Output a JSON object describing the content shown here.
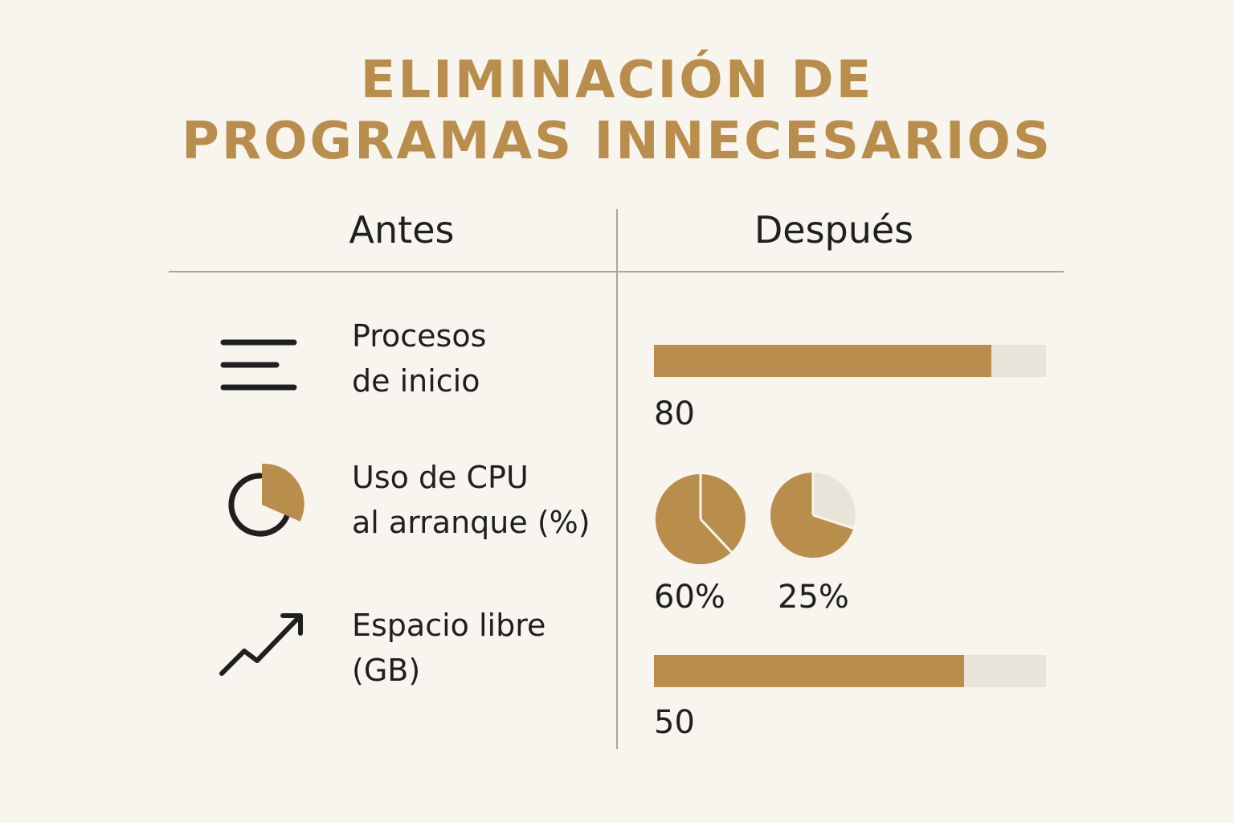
{
  "title": {
    "line1": "ELIMINACIÓN DE",
    "line2": "PROGRAMAS INNECESARIOS"
  },
  "columns": {
    "before": "Antes",
    "after": "Después"
  },
  "rows": [
    {
      "icon": "lines-icon",
      "label_line1": "Procesos",
      "label_line2": "de inicio",
      "value": 80,
      "value_text": "80",
      "bar_fraction": 0.86
    },
    {
      "icon": "pie-chart-icon",
      "label_line1": "Uso de CPU",
      "label_line2": "al arranque (%)",
      "pies": [
        {
          "value": 60,
          "value_text": "60%"
        },
        {
          "value": 25,
          "value_text": "25%"
        }
      ]
    },
    {
      "icon": "trend-up-icon",
      "label_line1": "Espacio libre",
      "label_line2": "(GB)",
      "value": 50,
      "value_text": "50",
      "bar_fraction": 0.79
    }
  ],
  "colors": {
    "accent": "#b98e4c",
    "track": "#e9e4da",
    "background": "#f8f5ee",
    "text": "#1f1f1f",
    "divider": "#a9a6a0"
  }
}
